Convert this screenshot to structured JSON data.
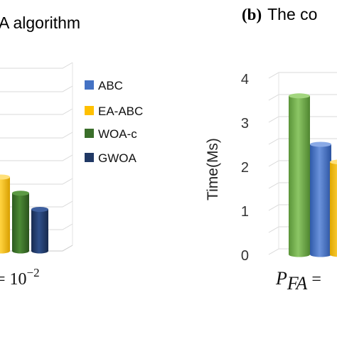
{
  "panel_a": {
    "title": "A algorithm",
    "xlabel_prefix": "= 10",
    "xlabel_exp": "−2"
  },
  "panel_b": {
    "tag": "(b)",
    "title": "The co",
    "ylabel": "Time(Ms)",
    "xlabel_P": "P",
    "xlabel_sub": "FA",
    "xlabel_eq": " ="
  },
  "colors": {
    "ABC": "#4472c4",
    "EA-ABC": "#ffc000",
    "WOA-c": "#3a6e2a",
    "GWOA": "#203864",
    "GreenB": "#70ad47"
  },
  "chart_data": [
    {
      "type": "bar",
      "title": "A algorithm",
      "series": [
        {
          "name": "ABC",
          "values": [
            null
          ]
        },
        {
          "name": "EA-ABC",
          "values": [
            1.6
          ]
        },
        {
          "name": "WOA-c",
          "values": [
            1.25
          ]
        },
        {
          "name": "GWOA",
          "values": [
            0.9
          ]
        }
      ],
      "legend": [
        "ABC",
        "EA-ABC",
        "WOA-c",
        "GWOA"
      ],
      "legend_position": "right",
      "grid": true
    },
    {
      "type": "bar",
      "title": "The co",
      "ylabel": "Time(Ms)",
      "ylim": [
        0,
        4
      ],
      "yticks": [
        "0",
        "1",
        "2",
        "3",
        "4"
      ],
      "series": [
        {
          "name": "",
          "values": [
            3.6
          ]
        },
        {
          "name": "",
          "values": [
            2.5
          ]
        },
        {
          "name": "",
          "values": [
            2.1
          ]
        }
      ],
      "grid": true
    }
  ]
}
